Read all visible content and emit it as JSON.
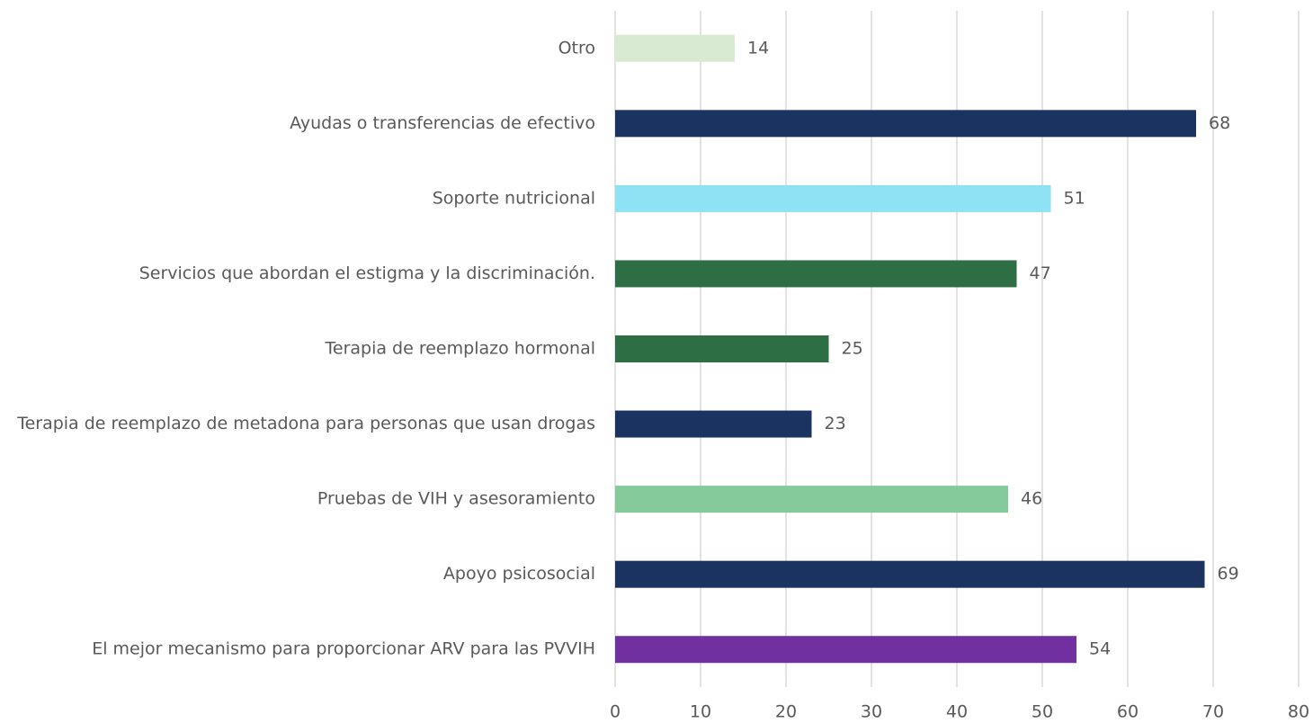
{
  "chart_data": {
    "type": "bar",
    "orientation": "horizontal",
    "categories": [
      "Otro",
      "Ayudas o transferencias de efectivo",
      "Soporte nutricional",
      "Servicios que abordan el estigma y la discriminación.",
      "Terapia de reemplazo hormonal",
      "Terapia de reemplazo de metadona para personas que usan drogas",
      "Pruebas de VIH y asesoramiento",
      "Apoyo psicosocial",
      "El mejor mecanismo para proporcionar ARV para las PVVIH"
    ],
    "values": [
      14,
      68,
      51,
      47,
      25,
      23,
      46,
      69,
      54
    ],
    "colors": [
      "#d9ead3",
      "#1b3360",
      "#8fe1f4",
      "#2e6e45",
      "#2e6e45",
      "#1b3360",
      "#84ca9b",
      "#1b3360",
      "#7030a0"
    ],
    "xlim": [
      0,
      80
    ],
    "xticks": [
      0,
      10,
      20,
      30,
      40,
      50,
      60,
      70,
      80
    ],
    "grid": true
  }
}
